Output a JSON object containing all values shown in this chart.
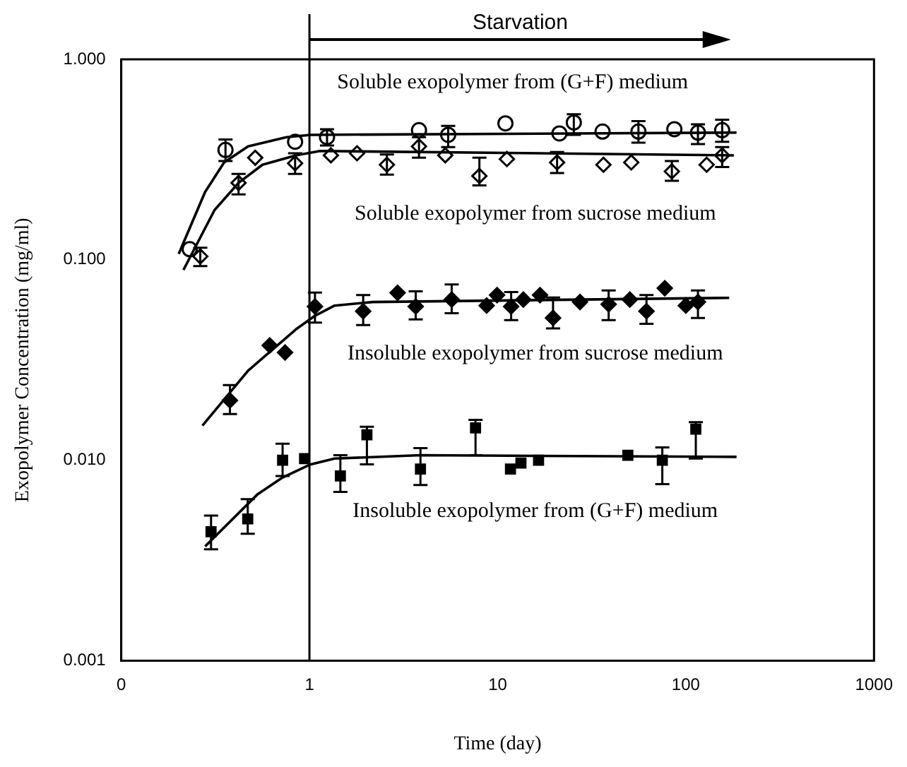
{
  "chart_data": {
    "type": "scatter",
    "xlabel": "Time (day)",
    "ylabel": "Exopolymer Concentration (mg/ml)",
    "log": "xy",
    "grid": false,
    "legend": false,
    "xlim": [
      0.1,
      1000
    ],
    "xticks": [
      {
        "value": 0.1,
        "label": "0"
      },
      1,
      10,
      100,
      1000
    ],
    "ylim": [
      0.001,
      1
    ],
    "yticks": [
      {
        "value": 0.001,
        "label": "0.001"
      },
      {
        "value": 0.01,
        "label": "0.010"
      },
      {
        "value": 0.1,
        "label": "0.100"
      },
      {
        "value": 1,
        "label": "1.000"
      }
    ],
    "ref_lines": [
      {
        "axis": "x",
        "value": 1
      }
    ],
    "annotations": [
      "Starvation"
    ],
    "series": [
      {
        "name": "Soluble exopolymer from (G+F) medium",
        "type": "scatter",
        "marker": "circle",
        "color": "#000000",
        "x": [
          0.231,
          0.358,
          0.839,
          1.24,
          3.82,
          5.46,
          11.0,
          21.3,
          25.4,
          36.1,
          56.0,
          86.9,
          116,
          156
        ],
        "values": [
          0.113,
          0.353,
          0.388,
          0.409,
          0.443,
          0.42,
          0.479,
          0.427,
          0.484,
          0.436,
          0.436,
          0.448,
          0.431,
          0.443
        ],
        "errors": [
          null,
          [
            0.311,
            0.398
          ],
          null,
          [
            0.372,
            0.448
          ],
          null,
          [
            0.365,
            0.466
          ],
          null,
          null,
          [
            0.42,
            0.532
          ],
          null,
          [
            0.384,
            0.492
          ],
          null,
          [
            0.378,
            0.474
          ],
          [
            0.388,
            0.5
          ]
        ]
      },
      {
        "type": "line",
        "marker": "none",
        "color": "#000000",
        "x": [
          0.202,
          0.279,
          0.352,
          0.472,
          0.755,
          1.01,
          186
        ],
        "values": [
          0.107,
          0.218,
          0.306,
          0.368,
          0.409,
          0.42,
          0.431
        ]
      },
      {
        "name": "Soluble exopolymer from sucrose medium",
        "type": "scatter",
        "marker": "diamond",
        "color": "#000000",
        "x": [
          0.263,
          0.42,
          0.515,
          0.839,
          1.3,
          1.79,
          2.58,
          3.82,
          5.27,
          8.0,
          11.2,
          20.7,
          36.5,
          51.3,
          84.3,
          129,
          156
        ],
        "values": [
          0.104,
          0.242,
          0.323,
          0.303,
          0.332,
          0.34,
          0.298,
          0.368,
          0.332,
          0.262,
          0.318,
          0.306,
          0.298,
          0.306,
          0.276,
          0.298,
          0.332
        ],
        "errors": [
          [
            0.093,
            0.115
          ],
          [
            0.212,
            0.268
          ],
          null,
          [
            0.268,
            0.34
          ],
          null,
          null,
          [
            0.266,
            0.335
          ],
          [
            0.323,
            0.409
          ],
          null,
          [
            0.235,
            0.323
          ],
          null,
          [
            0.271,
            0.345
          ],
          null,
          null,
          [
            0.248,
            0.311
          ],
          null,
          [
            0.29,
            0.365
          ]
        ]
      },
      {
        "type": "line",
        "marker": "none",
        "color": "#000000",
        "x": [
          0.214,
          0.313,
          0.42,
          0.563,
          0.848,
          1.14,
          180
        ],
        "values": [
          0.089,
          0.177,
          0.242,
          0.298,
          0.332,
          0.349,
          0.332
        ]
      },
      {
        "name": "Insoluble exopolymer from sucrose medium",
        "type": "scatter",
        "marker": "diamond",
        "color": "#000000",
        "x": [
          0.378,
          0.615,
          0.742,
          1.07,
          1.93,
          2.94,
          3.67,
          5.7,
          8.74,
          9.93,
          11.8,
          13.7,
          16.8,
          19.7,
          27.4,
          38.9,
          50.4,
          61.8,
          77.3,
          100,
          116
        ],
        "values": [
          0.0199,
          0.0374,
          0.0345,
          0.0585,
          0.0554,
          0.0685,
          0.0585,
          0.0633,
          0.0591,
          0.0667,
          0.0585,
          0.0633,
          0.0667,
          0.0513,
          0.0616,
          0.06,
          0.0633,
          0.0554,
          0.0722,
          0.0591,
          0.0616
        ],
        "errors": [
          [
            0.017,
            0.0237
          ],
          null,
          null,
          [
            0.0486,
            0.0686
          ],
          [
            0.0473,
            0.0667
          ],
          null,
          [
            0.0504,
            0.0696
          ],
          [
            0.0541,
            0.0753
          ],
          null,
          null,
          [
            0.05,
            0.0691
          ],
          null,
          null,
          [
            0.0455,
            0.0649
          ],
          null,
          [
            0.05,
            0.0703
          ],
          null,
          [
            0.0479,
            0.0667
          ],
          null,
          null,
          [
            0.0513,
            0.0703
          ]
        ]
      },
      {
        "type": "line",
        "marker": "none",
        "color": "#000000",
        "x": [
          0.27,
          0.472,
          0.848,
          1.07,
          1.36,
          2.17,
          170
        ],
        "values": [
          0.0149,
          0.028,
          0.045,
          0.0526,
          0.0591,
          0.0616,
          0.0646
        ]
      },
      {
        "name": "Insoluble exopolymer from (G+F) medium",
        "type": "scatter",
        "marker": "square",
        "color": "#000000",
        "x": [
          0.3,
          0.47,
          0.72,
          0.942,
          1.46,
          2.02,
          3.89,
          7.63,
          11.7,
          13.3,
          16.5,
          49.2,
          75.0,
          113
        ],
        "values": [
          0.0044,
          0.0051,
          0.01,
          0.0102,
          0.00835,
          0.0134,
          0.00904,
          0.0145,
          0.00904,
          0.00969,
          0.01,
          0.0106,
          0.01,
          0.0143
        ],
        "errors": [
          [
            0.0036,
            0.0053
          ],
          [
            0.0043,
            0.0064
          ],
          [
            0.00835,
            0.0121
          ],
          null,
          [
            0.00696,
            0.0106
          ],
          [
            0.00954,
            0.0147
          ],
          [
            0.00753,
            0.0115
          ],
          [
            0.0106,
            0.0159
          ],
          null,
          null,
          null,
          null,
          [
            0.0076,
            0.0116
          ],
          [
            0.0102,
            0.0155
          ]
        ]
      },
      {
        "type": "line",
        "marker": "none",
        "color": "#000000",
        "x": [
          0.279,
          0.531,
          0.711,
          1.01,
          1.36,
          3.89,
          186
        ],
        "values": [
          0.00372,
          0.00678,
          0.00815,
          0.00953,
          0.0102,
          0.0106,
          0.0104
        ]
      }
    ]
  }
}
